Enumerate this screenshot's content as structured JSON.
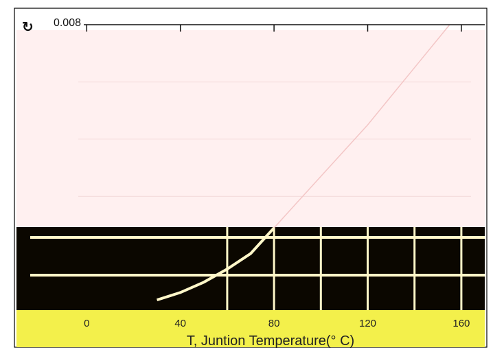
{
  "chart_data": {
    "type": "line",
    "title": "",
    "xlabel": "T, Juntion Temperature(° C)",
    "ylabel": "",
    "xlim": [
      -30,
      170
    ],
    "ylim": [
      0.003,
      0.008
    ],
    "x_ticks": [
      0,
      40,
      80,
      120,
      160
    ],
    "x_tick_labels": [
      "0",
      "40",
      "80",
      "120",
      "160"
    ],
    "y_ticks": [
      0.008
    ],
    "y_tick_labels": [
      "0.008"
    ],
    "series": [
      {
        "values": [
          {
            "x": 30,
            "y": 0.00319
          },
          {
            "x": 40,
            "y": 0.00332
          },
          {
            "x": 50,
            "y": 0.0035
          },
          {
            "x": 60,
            "y": 0.00373
          },
          {
            "x": 70,
            "y": 0.004
          },
          {
            "x": 80,
            "y": 0.00445
          },
          {
            "x": 90,
            "y": 0.0049
          },
          {
            "x": 100,
            "y": 0.00535
          },
          {
            "x": 110,
            "y": 0.0058
          },
          {
            "x": 120,
            "y": 0.00625
          },
          {
            "x": 130,
            "y": 0.00675
          },
          {
            "x": 140,
            "y": 0.00725
          },
          {
            "x": 150,
            "y": 0.00775
          },
          {
            "x": 155,
            "y": 0.008
          }
        ]
      }
    ],
    "grid": true,
    "legend": "none",
    "colors": {
      "frame": "#000000",
      "plot_upper_bg": "#fff0f0",
      "plot_lower_bg": "#0b0700",
      "grid_upper": "#f2d8d8",
      "grid_lower": "#fff7c8",
      "curve_upper": "#f3c6c6",
      "curve_lower": "#fff7c8",
      "x_label_band": "#f3f04b",
      "label_text": "#222222"
    }
  }
}
